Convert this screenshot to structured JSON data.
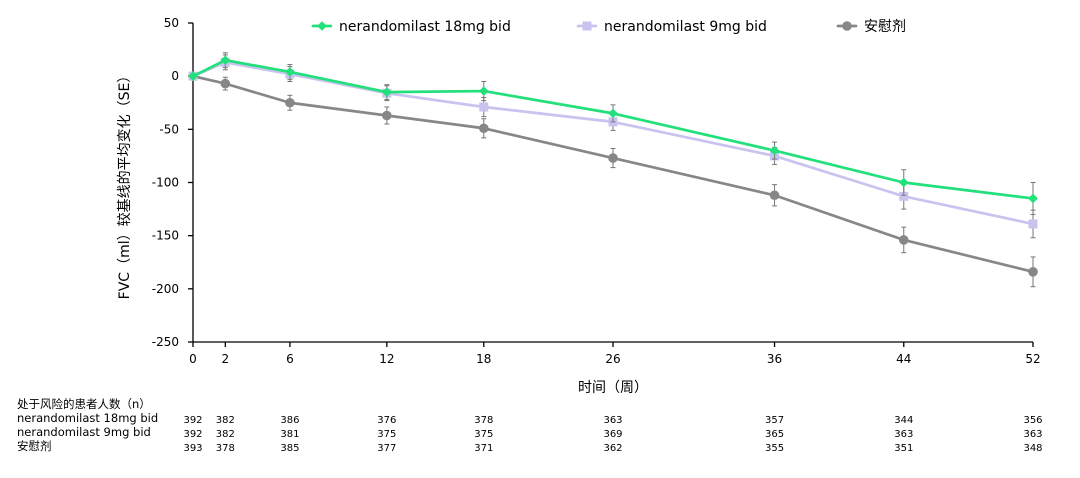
{
  "chart_data": {
    "type": "line",
    "title": "",
    "xlabel": "时间（周）",
    "ylabel": "FVC（ml）较基线的平均变化（SE）",
    "x": [
      0,
      2,
      6,
      12,
      18,
      26,
      36,
      44,
      52
    ],
    "xlim": [
      0,
      52
    ],
    "ylim": [
      -250,
      50
    ],
    "yticks": [
      50,
      0,
      -50,
      -100,
      -150,
      -200,
      -250
    ],
    "grid": false,
    "legend_position": "top",
    "series": [
      {
        "name": "nerandomilast 18mg bid",
        "color": "#22e07a",
        "marker": "diamond",
        "values": [
          0,
          15,
          4,
          -15,
          -14,
          -35,
          -70,
          -100,
          -115
        ],
        "se": [
          0,
          7,
          7,
          7,
          9,
          8,
          8,
          12,
          15
        ]
      },
      {
        "name": "nerandomilast 9mg bid",
        "color": "#c8c3ef",
        "marker": "square",
        "values": [
          0,
          13,
          2,
          -16,
          -29,
          -43,
          -75,
          -113,
          -139
        ],
        "se": [
          0,
          7,
          7,
          7,
          9,
          8,
          8,
          12,
          13
        ]
      },
      {
        "name": "安慰剂",
        "color": "#878787",
        "marker": "circle",
        "values": [
          0,
          -7,
          -25,
          -37,
          -49,
          -77,
          -112,
          -154,
          -184
        ],
        "se": [
          0,
          6,
          7,
          8,
          9,
          9,
          10,
          12,
          14
        ]
      }
    ],
    "risk_table": {
      "title": "处于风险的患者人数（n）",
      "rows": [
        {
          "label": "nerandomilast 18mg bid",
          "values": [
            "392",
            "382",
            "386",
            "376",
            "378",
            "363",
            "357",
            "344",
            "356"
          ]
        },
        {
          "label": "nerandomilast 9mg bid",
          "values": [
            "392",
            "382",
            "381",
            "375",
            "375",
            "369",
            "365",
            "363",
            "363"
          ]
        },
        {
          "label": "安慰剂",
          "values": [
            "393",
            "378",
            "385",
            "377",
            "371",
            "362",
            "355",
            "351",
            "348"
          ]
        }
      ]
    }
  }
}
